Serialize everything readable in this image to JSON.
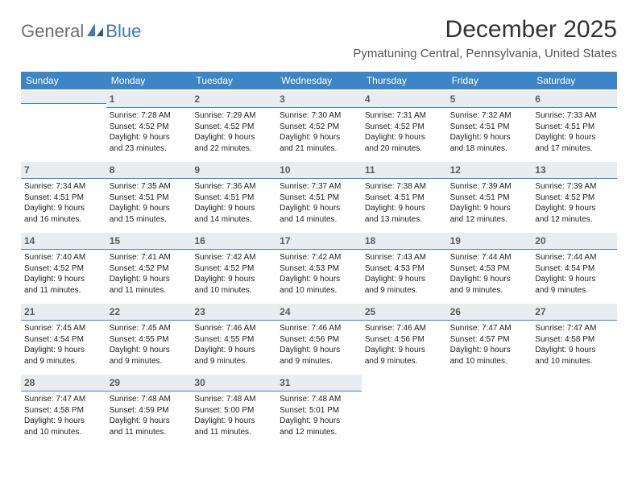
{
  "logo": {
    "general": "General",
    "blue": "Blue"
  },
  "title": "December 2025",
  "location": "Pymatuning Central, Pennsylvania, United States",
  "colors": {
    "header_bg": "#3c85c6",
    "header_text": "#ffffff",
    "daynum_bg": "#e9edf0",
    "daynum_border": "#3c85c6",
    "body_text": "#222222",
    "logo_general": "#6d6d6d",
    "logo_blue": "#3c79b5"
  },
  "dow": [
    "Sunday",
    "Monday",
    "Tuesday",
    "Wednesday",
    "Thursday",
    "Friday",
    "Saturday"
  ],
  "weeks": [
    [
      {
        "blank": true
      },
      {
        "day": "1",
        "sunrise": "Sunrise: 7:28 AM",
        "sunset": "Sunset: 4:52 PM",
        "dl1": "Daylight: 9 hours",
        "dl2": "and 23 minutes."
      },
      {
        "day": "2",
        "sunrise": "Sunrise: 7:29 AM",
        "sunset": "Sunset: 4:52 PM",
        "dl1": "Daylight: 9 hours",
        "dl2": "and 22 minutes."
      },
      {
        "day": "3",
        "sunrise": "Sunrise: 7:30 AM",
        "sunset": "Sunset: 4:52 PM",
        "dl1": "Daylight: 9 hours",
        "dl2": "and 21 minutes."
      },
      {
        "day": "4",
        "sunrise": "Sunrise: 7:31 AM",
        "sunset": "Sunset: 4:52 PM",
        "dl1": "Daylight: 9 hours",
        "dl2": "and 20 minutes."
      },
      {
        "day": "5",
        "sunrise": "Sunrise: 7:32 AM",
        "sunset": "Sunset: 4:51 PM",
        "dl1": "Daylight: 9 hours",
        "dl2": "and 18 minutes."
      },
      {
        "day": "6",
        "sunrise": "Sunrise: 7:33 AM",
        "sunset": "Sunset: 4:51 PM",
        "dl1": "Daylight: 9 hours",
        "dl2": "and 17 minutes."
      }
    ],
    [
      {
        "day": "7",
        "sunrise": "Sunrise: 7:34 AM",
        "sunset": "Sunset: 4:51 PM",
        "dl1": "Daylight: 9 hours",
        "dl2": "and 16 minutes."
      },
      {
        "day": "8",
        "sunrise": "Sunrise: 7:35 AM",
        "sunset": "Sunset: 4:51 PM",
        "dl1": "Daylight: 9 hours",
        "dl2": "and 15 minutes."
      },
      {
        "day": "9",
        "sunrise": "Sunrise: 7:36 AM",
        "sunset": "Sunset: 4:51 PM",
        "dl1": "Daylight: 9 hours",
        "dl2": "and 14 minutes."
      },
      {
        "day": "10",
        "sunrise": "Sunrise: 7:37 AM",
        "sunset": "Sunset: 4:51 PM",
        "dl1": "Daylight: 9 hours",
        "dl2": "and 14 minutes."
      },
      {
        "day": "11",
        "sunrise": "Sunrise: 7:38 AM",
        "sunset": "Sunset: 4:51 PM",
        "dl1": "Daylight: 9 hours",
        "dl2": "and 13 minutes."
      },
      {
        "day": "12",
        "sunrise": "Sunrise: 7:39 AM",
        "sunset": "Sunset: 4:51 PM",
        "dl1": "Daylight: 9 hours",
        "dl2": "and 12 minutes."
      },
      {
        "day": "13",
        "sunrise": "Sunrise: 7:39 AM",
        "sunset": "Sunset: 4:52 PM",
        "dl1": "Daylight: 9 hours",
        "dl2": "and 12 minutes."
      }
    ],
    [
      {
        "day": "14",
        "sunrise": "Sunrise: 7:40 AM",
        "sunset": "Sunset: 4:52 PM",
        "dl1": "Daylight: 9 hours",
        "dl2": "and 11 minutes."
      },
      {
        "day": "15",
        "sunrise": "Sunrise: 7:41 AM",
        "sunset": "Sunset: 4:52 PM",
        "dl1": "Daylight: 9 hours",
        "dl2": "and 11 minutes."
      },
      {
        "day": "16",
        "sunrise": "Sunrise: 7:42 AM",
        "sunset": "Sunset: 4:52 PM",
        "dl1": "Daylight: 9 hours",
        "dl2": "and 10 minutes."
      },
      {
        "day": "17",
        "sunrise": "Sunrise: 7:42 AM",
        "sunset": "Sunset: 4:53 PM",
        "dl1": "Daylight: 9 hours",
        "dl2": "and 10 minutes."
      },
      {
        "day": "18",
        "sunrise": "Sunrise: 7:43 AM",
        "sunset": "Sunset: 4:53 PM",
        "dl1": "Daylight: 9 hours",
        "dl2": "and 9 minutes."
      },
      {
        "day": "19",
        "sunrise": "Sunrise: 7:44 AM",
        "sunset": "Sunset: 4:53 PM",
        "dl1": "Daylight: 9 hours",
        "dl2": "and 9 minutes."
      },
      {
        "day": "20",
        "sunrise": "Sunrise: 7:44 AM",
        "sunset": "Sunset: 4:54 PM",
        "dl1": "Daylight: 9 hours",
        "dl2": "and 9 minutes."
      }
    ],
    [
      {
        "day": "21",
        "sunrise": "Sunrise: 7:45 AM",
        "sunset": "Sunset: 4:54 PM",
        "dl1": "Daylight: 9 hours",
        "dl2": "and 9 minutes."
      },
      {
        "day": "22",
        "sunrise": "Sunrise: 7:45 AM",
        "sunset": "Sunset: 4:55 PM",
        "dl1": "Daylight: 9 hours",
        "dl2": "and 9 minutes."
      },
      {
        "day": "23",
        "sunrise": "Sunrise: 7:46 AM",
        "sunset": "Sunset: 4:55 PM",
        "dl1": "Daylight: 9 hours",
        "dl2": "and 9 minutes."
      },
      {
        "day": "24",
        "sunrise": "Sunrise: 7:46 AM",
        "sunset": "Sunset: 4:56 PM",
        "dl1": "Daylight: 9 hours",
        "dl2": "and 9 minutes."
      },
      {
        "day": "25",
        "sunrise": "Sunrise: 7:46 AM",
        "sunset": "Sunset: 4:56 PM",
        "dl1": "Daylight: 9 hours",
        "dl2": "and 9 minutes."
      },
      {
        "day": "26",
        "sunrise": "Sunrise: 7:47 AM",
        "sunset": "Sunset: 4:57 PM",
        "dl1": "Daylight: 9 hours",
        "dl2": "and 10 minutes."
      },
      {
        "day": "27",
        "sunrise": "Sunrise: 7:47 AM",
        "sunset": "Sunset: 4:58 PM",
        "dl1": "Daylight: 9 hours",
        "dl2": "and 10 minutes."
      }
    ],
    [
      {
        "day": "28",
        "sunrise": "Sunrise: 7:47 AM",
        "sunset": "Sunset: 4:58 PM",
        "dl1": "Daylight: 9 hours",
        "dl2": "and 10 minutes."
      },
      {
        "day": "29",
        "sunrise": "Sunrise: 7:48 AM",
        "sunset": "Sunset: 4:59 PM",
        "dl1": "Daylight: 9 hours",
        "dl2": "and 11 minutes."
      },
      {
        "day": "30",
        "sunrise": "Sunrise: 7:48 AM",
        "sunset": "Sunset: 5:00 PM",
        "dl1": "Daylight: 9 hours",
        "dl2": "and 11 minutes."
      },
      {
        "day": "31",
        "sunrise": "Sunrise: 7:48 AM",
        "sunset": "Sunset: 5:01 PM",
        "dl1": "Daylight: 9 hours",
        "dl2": "and 12 minutes."
      },
      {
        "blank": true
      },
      {
        "blank": true
      },
      {
        "blank": true
      }
    ]
  ]
}
